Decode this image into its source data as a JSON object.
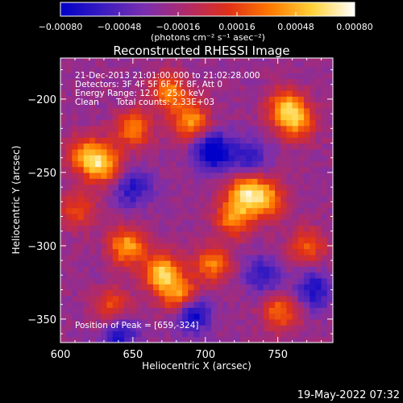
{
  "chart_data": {
    "type": "heatmap",
    "title": "Reconstructed RHESSI Image",
    "xlabel": "Heliocentric X (arcsec)",
    "ylabel": "Heliocentric Y (arcsec)",
    "xlim": [
      600,
      788
    ],
    "ylim": [
      -366,
      -172
    ],
    "x_ticks": [
      600,
      650,
      700,
      750
    ],
    "y_ticks": [
      -200,
      -250,
      -300,
      -350
    ],
    "x_tick_labels": [
      "600",
      "650",
      "700",
      "750"
    ],
    "y_tick_labels": [
      "−200",
      "−250",
      "−300",
      "−350"
    ],
    "colorbar": {
      "range": [
        -0.0008,
        0.0008
      ],
      "ticks": [
        -0.0008,
        -0.00048,
        -0.00016,
        0.00016,
        0.00048,
        0.0008
      ],
      "tick_labels": [
        "−0.00080",
        "−0.00048",
        "−0.00016",
        "0.00016",
        "0.00048",
        "0.00080"
      ],
      "units": "(photons cm⁻² s⁻¹ asec⁻²)",
      "colors": [
        "#0000c8",
        "#3a1cc0",
        "#7a2fb0",
        "#b02a6a",
        "#e03018",
        "#ff7a00",
        "#ffd23a",
        "#ffffff"
      ]
    },
    "annotations": {
      "time_range": "21-Dec-2013 21:01:00.000 to 21:02:28.000",
      "detectors": "Detectors: 3F 4F 5F 6F 7F 8F, Att 0",
      "energy_range": "Energy Range: 12.0 - 25.0 keV",
      "clean_label": "Clean",
      "total_counts": "Total counts: 2.33E+03",
      "peak_position": "Position of Peak = [659,-324]"
    },
    "bright_sources": [
      {
        "x": 670,
        "y": -318,
        "intensity": 1.0
      },
      {
        "x": 683,
        "y": -335,
        "intensity": 0.95
      },
      {
        "x": 646,
        "y": -300,
        "intensity": 0.85
      },
      {
        "x": 720,
        "y": -280,
        "intensity": 0.8
      },
      {
        "x": 728,
        "y": -262,
        "intensity": 0.85
      },
      {
        "x": 742,
        "y": -268,
        "intensity": 0.75
      },
      {
        "x": 630,
        "y": -245,
        "intensity": 0.8
      },
      {
        "x": 618,
        "y": -238,
        "intensity": 0.75
      },
      {
        "x": 650,
        "y": -220,
        "intensity": 0.7
      },
      {
        "x": 675,
        "y": -195,
        "intensity": 0.75
      },
      {
        "x": 690,
        "y": -215,
        "intensity": 0.8
      },
      {
        "x": 755,
        "y": -205,
        "intensity": 0.75
      },
      {
        "x": 763,
        "y": -215,
        "intensity": 0.7
      },
      {
        "x": 705,
        "y": -312,
        "intensity": 0.7
      },
      {
        "x": 752,
        "y": -345,
        "intensity": 0.65
      },
      {
        "x": 635,
        "y": -342,
        "intensity": 0.55
      },
      {
        "x": 770,
        "y": -300,
        "intensity": 0.55
      },
      {
        "x": 612,
        "y": -275,
        "intensity": 0.5
      }
    ],
    "dark_sources": [
      {
        "x": 705,
        "y": -235,
        "intensity": -0.9
      },
      {
        "x": 690,
        "y": -345,
        "intensity": -0.9
      },
      {
        "x": 640,
        "y": -360,
        "intensity": -0.6
      },
      {
        "x": 650,
        "y": -260,
        "intensity": -0.55
      },
      {
        "x": 775,
        "y": -330,
        "intensity": -0.6
      },
      {
        "x": 730,
        "y": -240,
        "intensity": -0.5
      },
      {
        "x": 740,
        "y": -320,
        "intensity": -0.5
      }
    ]
  },
  "footer": {
    "date_time": "19-May-2022 07:32"
  }
}
